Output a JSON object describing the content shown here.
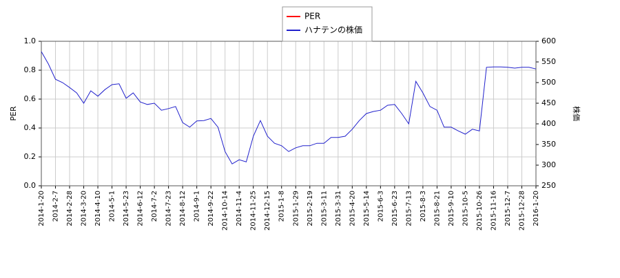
{
  "chart_data": {
    "type": "line",
    "categories": [
      "2014-1-20",
      null,
      "2014-2-7",
      null,
      "2014-2-28",
      null,
      "2014-3-20",
      null,
      "2014-4-10",
      null,
      "2014-5-1",
      null,
      "2014-5-23",
      null,
      "2014-6-12",
      null,
      "2014-7-2",
      null,
      "2014-7-23",
      null,
      "2014-8-12",
      null,
      "2014-9-1",
      null,
      "2014-9-22",
      null,
      "2014-10-14",
      null,
      "2014-11-4",
      null,
      "2014-11-25",
      null,
      "2014-12-15",
      null,
      "2015-1-8",
      null,
      "2015-1-29",
      null,
      "2015-2-19",
      null,
      "2015-3-11",
      null,
      "2015-3-31",
      null,
      "2015-4-20",
      null,
      "2015-5-14",
      null,
      "2015-6-3",
      null,
      "2015-6-23",
      null,
      "2015-7-13",
      null,
      "2015-8-3",
      null,
      "2015-8-21",
      null,
      "2015-9-10",
      null,
      "2015-10-5",
      null,
      "2015-10-26",
      null,
      "2015-11-16",
      null,
      "2015-12-7",
      null,
      "2015-12-28",
      null,
      "2016-1-20"
    ],
    "series": [
      {
        "name": "PER",
        "color": "#ff0000",
        "axis": "y",
        "values": [
          null,
          null,
          null,
          null,
          null,
          null,
          null,
          null,
          null,
          null,
          null,
          null,
          null,
          null,
          null,
          null,
          null,
          null,
          null,
          null,
          null,
          null,
          null,
          null,
          null,
          null,
          null,
          null,
          null,
          null,
          null,
          null,
          null,
          null,
          null,
          null,
          null,
          null,
          null,
          null,
          null,
          null,
          null,
          null,
          null,
          null,
          null,
          null,
          null,
          null,
          null,
          null,
          null,
          null,
          null,
          null,
          null,
          null,
          null,
          null,
          null,
          null,
          null,
          null,
          null,
          null,
          null,
          null,
          null,
          null,
          null
        ]
      },
      {
        "name": "ハナテンの株価",
        "color": "#2020cc",
        "axis": "y2",
        "values": [
          575,
          545,
          508,
          500,
          488,
          475,
          450,
          480,
          467,
          483,
          495,
          497,
          462,
          475,
          453,
          447,
          450,
          433,
          437,
          442,
          403,
          392,
          407,
          408,
          413,
          392,
          333,
          303,
          313,
          308,
          370,
          408,
          370,
          353,
          347,
          333,
          342,
          347,
          347,
          353,
          353,
          367,
          367,
          370,
          387,
          408,
          425,
          430,
          433,
          445,
          447,
          425,
          400,
          503,
          475,
          442,
          433,
          392,
          392,
          383,
          375,
          387,
          383,
          537,
          538,
          538,
          537,
          535,
          537,
          537,
          533
        ]
      }
    ],
    "ylabel": "PER",
    "y2label": "株価",
    "ylim": [
      0,
      1
    ],
    "yticks": [
      {
        "value": 0,
        "label": "0.0"
      },
      {
        "value": 0.2,
        "label": "0.2"
      },
      {
        "value": 0.4,
        "label": "0.4"
      },
      {
        "value": 0.6,
        "label": "0.6"
      },
      {
        "value": 0.8,
        "label": "0.8"
      },
      {
        "value": 1,
        "label": "1.0"
      }
    ],
    "y2lim": [
      250,
      600
    ],
    "y2ticks": [
      250,
      300,
      350,
      400,
      450,
      500,
      550,
      600
    ],
    "grid": true,
    "legend": "top"
  }
}
